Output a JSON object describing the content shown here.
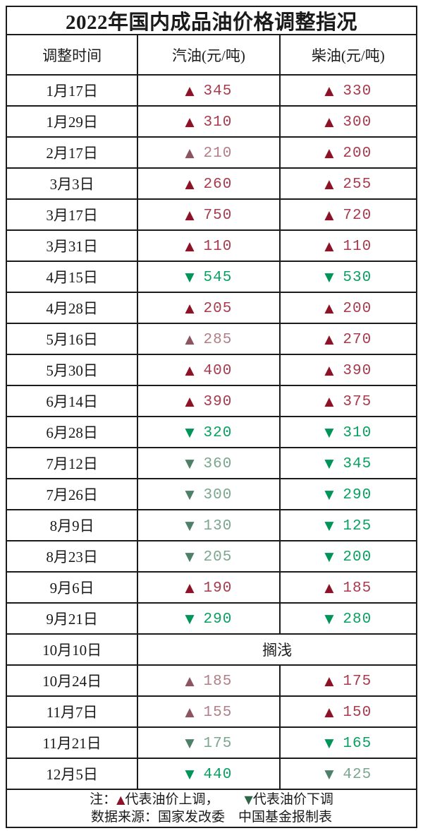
{
  "chart_data": {
    "type": "table",
    "title": "2022年国内成品油价格调整指况",
    "columns": [
      "调整时间",
      "汽油(元/吨)",
      "柴油(元/吨)"
    ],
    "rows": [
      {
        "date": "1月17日",
        "gas": {
          "dir": "up",
          "tone": "bright",
          "value": "345"
        },
        "diesel": {
          "dir": "up",
          "tone": "bright",
          "value": "330"
        }
      },
      {
        "date": "1月29日",
        "gas": {
          "dir": "up",
          "tone": "bright",
          "value": "310"
        },
        "diesel": {
          "dir": "up",
          "tone": "bright",
          "value": "300"
        }
      },
      {
        "date": "2月17日",
        "gas": {
          "dir": "up",
          "tone": "muted",
          "value": "210"
        },
        "diesel": {
          "dir": "up",
          "tone": "bright",
          "value": "200"
        }
      },
      {
        "date": "3月3日",
        "gas": {
          "dir": "up",
          "tone": "bright",
          "value": "260"
        },
        "diesel": {
          "dir": "up",
          "tone": "bright",
          "value": "255"
        }
      },
      {
        "date": "3月17日",
        "gas": {
          "dir": "up",
          "tone": "bright",
          "value": "750"
        },
        "diesel": {
          "dir": "up",
          "tone": "bright",
          "value": "720"
        }
      },
      {
        "date": "3月31日",
        "gas": {
          "dir": "up",
          "tone": "bright",
          "value": "110"
        },
        "diesel": {
          "dir": "up",
          "tone": "bright",
          "value": "110"
        }
      },
      {
        "date": "4月15日",
        "gas": {
          "dir": "down",
          "tone": "bright",
          "value": "545"
        },
        "diesel": {
          "dir": "down",
          "tone": "bright",
          "value": "530"
        }
      },
      {
        "date": "4月28日",
        "gas": {
          "dir": "up",
          "tone": "bright",
          "value": "205"
        },
        "diesel": {
          "dir": "up",
          "tone": "bright",
          "value": "200"
        }
      },
      {
        "date": "5月16日",
        "gas": {
          "dir": "up",
          "tone": "muted",
          "value": "285"
        },
        "diesel": {
          "dir": "up",
          "tone": "bright",
          "value": "270"
        }
      },
      {
        "date": "5月30日",
        "gas": {
          "dir": "up",
          "tone": "bright",
          "value": "400"
        },
        "diesel": {
          "dir": "up",
          "tone": "bright",
          "value": "390"
        }
      },
      {
        "date": "6月14日",
        "gas": {
          "dir": "up",
          "tone": "bright",
          "value": "390"
        },
        "diesel": {
          "dir": "up",
          "tone": "bright",
          "value": "375"
        }
      },
      {
        "date": "6月28日",
        "gas": {
          "dir": "down",
          "tone": "bright",
          "value": "320"
        },
        "diesel": {
          "dir": "down",
          "tone": "bright",
          "value": "310"
        }
      },
      {
        "date": "7月12日",
        "gas": {
          "dir": "down",
          "tone": "muted",
          "value": "360"
        },
        "diesel": {
          "dir": "down",
          "tone": "bright",
          "value": "345"
        }
      },
      {
        "date": "7月26日",
        "gas": {
          "dir": "down",
          "tone": "muted",
          "value": "300"
        },
        "diesel": {
          "dir": "down",
          "tone": "bright",
          "value": "290"
        }
      },
      {
        "date": "8月9日",
        "gas": {
          "dir": "down",
          "tone": "muted",
          "value": "130"
        },
        "diesel": {
          "dir": "down",
          "tone": "bright",
          "value": "125"
        }
      },
      {
        "date": "8月23日",
        "gas": {
          "dir": "down",
          "tone": "muted",
          "value": "205"
        },
        "diesel": {
          "dir": "down",
          "tone": "bright",
          "value": "200"
        }
      },
      {
        "date": "9月6日",
        "gas": {
          "dir": "up",
          "tone": "bright",
          "value": "190"
        },
        "diesel": {
          "dir": "up",
          "tone": "bright",
          "value": "185"
        }
      },
      {
        "date": "9月21日",
        "gas": {
          "dir": "down",
          "tone": "bright",
          "value": "290"
        },
        "diesel": {
          "dir": "down",
          "tone": "bright",
          "value": "280"
        }
      },
      {
        "date": "10月10日",
        "merged": "搁浅"
      },
      {
        "date": "10月24日",
        "gas": {
          "dir": "up",
          "tone": "muted",
          "value": "185"
        },
        "diesel": {
          "dir": "up",
          "tone": "bright",
          "value": "175"
        }
      },
      {
        "date": "11月7日",
        "gas": {
          "dir": "up",
          "tone": "muted",
          "value": "155"
        },
        "diesel": {
          "dir": "up",
          "tone": "bright",
          "value": "150"
        }
      },
      {
        "date": "11月21日",
        "gas": {
          "dir": "down",
          "tone": "muted",
          "value": "175"
        },
        "diesel": {
          "dir": "down",
          "tone": "bright",
          "value": "165"
        }
      },
      {
        "date": "12月5日",
        "gas": {
          "dir": "down",
          "tone": "bright",
          "value": "440"
        },
        "diesel": {
          "dir": "down",
          "tone": "muted",
          "value": "425"
        }
      }
    ],
    "note": {
      "prefix": "注：",
      "up_symbol": "▲",
      "up_text": "代表油价上调，",
      "down_symbol": "▼",
      "down_text": "代表油价下调"
    },
    "source": "数据来源：国家发改委　中国基金报制表",
    "legend": {
      "up_means": "油价上调",
      "down_means": "油价下调"
    }
  },
  "colors": {
    "up": {
      "bright": {
        "tri": "#8c1228",
        "val": "#a83a4e"
      },
      "muted": {
        "tri": "#8a5560",
        "val": "#b27e88"
      }
    },
    "down": {
      "bright": {
        "tri": "#009558",
        "val": "#0aa061"
      },
      "muted": {
        "tri": "#4e8069",
        "val": "#7ba78f"
      }
    },
    "note_up": "#8c1228",
    "note_down": "#2f6648",
    "border": "#1c1c1c",
    "text": "#1a1a1a"
  }
}
